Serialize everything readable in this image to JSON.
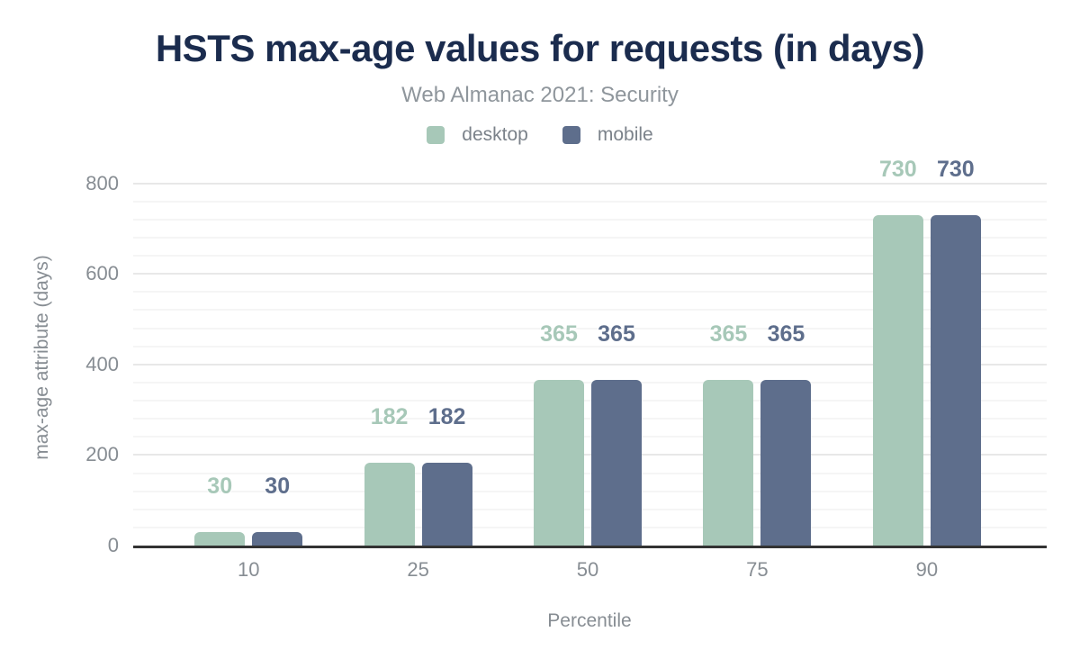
{
  "chart_data": {
    "type": "bar",
    "title": "HSTS max-age values for requests (in days)",
    "subtitle": "Web Almanac 2021: Security",
    "categories": [
      "10",
      "25",
      "50",
      "75",
      "90"
    ],
    "series": [
      {
        "name": "desktop",
        "color": "#a7c8b8",
        "values": [
          30,
          182,
          365,
          365,
          730
        ]
      },
      {
        "name": "mobile",
        "color": "#5e6e8c",
        "values": [
          30,
          182,
          365,
          365,
          730
        ]
      }
    ],
    "xlabel": "Percentile",
    "ylabel": "max-age attribute (days)",
    "ylim": [
      0,
      800
    ],
    "yticks": [
      0,
      200,
      400,
      600,
      800
    ],
    "minor_tick_step": 40,
    "grid": true,
    "legend_position": "top",
    "data_labels": true,
    "colors": {
      "title": "#1b2c4e",
      "subtitle": "#8f969c",
      "axis_text": "#878d93",
      "legend_text": "#7b828a",
      "grid_major": "#e8e8e8",
      "grid_minor": "#f5f5f5",
      "axis_line": "#333333",
      "background": "#ffffff"
    }
  }
}
